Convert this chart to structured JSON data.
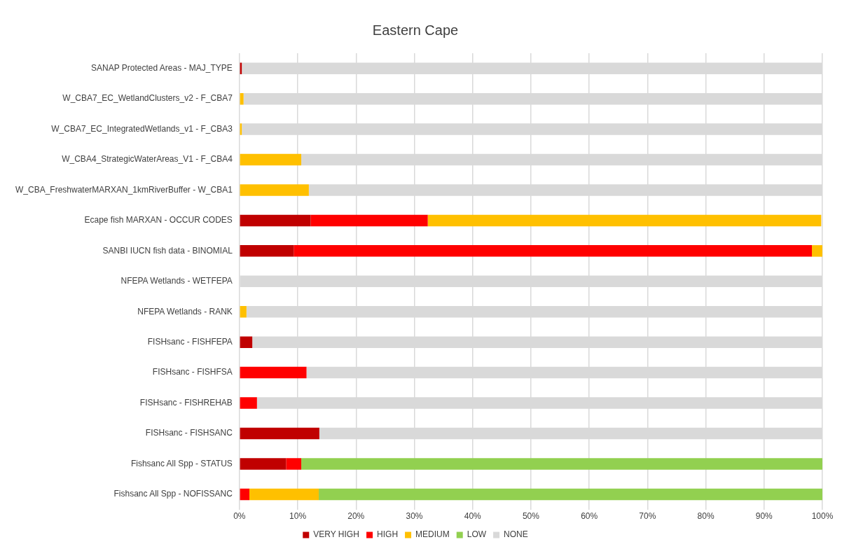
{
  "chart_data": {
    "type": "bar",
    "orientation": "horizontal",
    "stacked": true,
    "title": "Eastern Cape",
    "categories": [
      "SANAP Protected Areas - MAJ_TYPE",
      "W_CBA7_EC_WetlandClusters_v2 - F_CBA7",
      "W_CBA7_EC_IntegratedWetlands_v1 - F_CBA3",
      "W_CBA4_StrategicWaterAreas_V1 - F_CBA4",
      "W_CBA_FreshwaterMARXAN_1kmRiverBuffer - W_CBA1",
      "Ecape fish MARXAN - OCCUR CODES",
      "SANBI IUCN fish data - BINOMIAL",
      "NFEPA Wetlands - WETFEPA",
      "NFEPA Wetlands - RANK",
      "FISHsanc - FISHFEPA",
      "FISHsanc - FISHFSA",
      "FISHsanc - FISHREHAB",
      "FISHsanc - FISHSANC",
      "Fishsanc All Spp - STATUS",
      "Fishsanc All Spp - NOFISSANC"
    ],
    "series": [
      {
        "name": "VERY HIGH",
        "color": "#c00000",
        "values": [
          0.4,
          0,
          0,
          0,
          0,
          12.2,
          9.3,
          0,
          0,
          2.2,
          0,
          0,
          13.7,
          8.0,
          0
        ]
      },
      {
        "name": "HIGH",
        "color": "#ff0000",
        "values": [
          0,
          0,
          0,
          0,
          0,
          20.1,
          88.9,
          0,
          0,
          0,
          11.5,
          3.0,
          0,
          2.6,
          1.7
        ]
      },
      {
        "name": "MEDIUM",
        "color": "#ffc000",
        "values": [
          0,
          0.7,
          0.4,
          10.6,
          11.9,
          67.5,
          1.8,
          0,
          1.2,
          0,
          0,
          0,
          0,
          0,
          11.9
        ]
      },
      {
        "name": "LOW",
        "color": "#92d050",
        "values": [
          0,
          0,
          0,
          0,
          0,
          0,
          0,
          0,
          0,
          0,
          0,
          0,
          0,
          89.4,
          86.4
        ]
      },
      {
        "name": "NONE",
        "color": "#d9d9d9",
        "values": [
          99.6,
          99.3,
          99.6,
          89.4,
          88.1,
          null,
          0,
          100,
          98.8,
          97.8,
          88.5,
          97.0,
          86.3,
          0,
          0
        ]
      }
    ],
    "xlim": [
      0,
      100
    ],
    "xticks": [
      {
        "value": 0,
        "label": "0%"
      },
      {
        "value": 10,
        "label": "10%"
      },
      {
        "value": 20,
        "label": "20%"
      },
      {
        "value": 30,
        "label": "30%"
      },
      {
        "value": 40,
        "label": "40%"
      },
      {
        "value": 50,
        "label": "50%"
      },
      {
        "value": 60,
        "label": "60%"
      },
      {
        "value": 70,
        "label": "70%"
      },
      {
        "value": 80,
        "label": "80%"
      },
      {
        "value": 90,
        "label": "90%"
      },
      {
        "value": 100,
        "label": "100%"
      }
    ],
    "grid": "x",
    "legend": "bottom"
  }
}
